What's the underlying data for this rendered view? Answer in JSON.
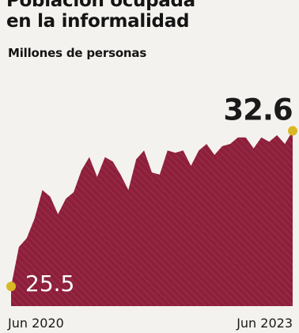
{
  "chart_data": {
    "type": "area",
    "title_line1": "Población ocupada",
    "title_line2": "en la informalidad",
    "subtitle": "Millones de personas",
    "x_tick_labels": [
      "Jun 2020",
      "Jun 2023"
    ],
    "start_value_label": "25.5",
    "end_value_label": "32.6",
    "x": [
      "Jun 2020",
      "Jul 2020",
      "Ago 2020",
      "Sep 2020",
      "Oct 2020",
      "Nov 2020",
      "Dic 2020",
      "Ene 2021",
      "Feb 2021",
      "Mar 2021",
      "Abr 2021",
      "May 2021",
      "Jun 2021",
      "Jul 2021",
      "Ago 2021",
      "Sep 2021",
      "Oct 2021",
      "Nov 2021",
      "Dic 2021",
      "Ene 2022",
      "Feb 2022",
      "Mar 2022",
      "Abr 2022",
      "May 2022",
      "Jun 2022",
      "Jul 2022",
      "Ago 2022",
      "Sep 2022",
      "Oct 2022",
      "Nov 2022",
      "Dic 2022",
      "Ene 2023",
      "Feb 2023",
      "Mar 2023",
      "Abr 2023",
      "May 2023",
      "Jun 2023"
    ],
    "values": [
      25.5,
      27.3,
      27.7,
      28.6,
      29.9,
      29.6,
      28.8,
      29.5,
      29.8,
      30.8,
      31.4,
      30.5,
      31.4,
      31.2,
      30.6,
      29.9,
      31.3,
      31.7,
      30.7,
      30.6,
      31.7,
      31.6,
      31.7,
      31.0,
      31.7,
      32.0,
      31.5,
      31.9,
      32.0,
      32.3,
      32.3,
      31.8,
      32.3,
      32.1,
      32.4,
      32.0,
      32.6
    ],
    "ylim": [
      24.6,
      34.6
    ],
    "series_color": "#8e1f3b",
    "marker_color": "#d9b825",
    "grid": false,
    "legend": "none"
  }
}
